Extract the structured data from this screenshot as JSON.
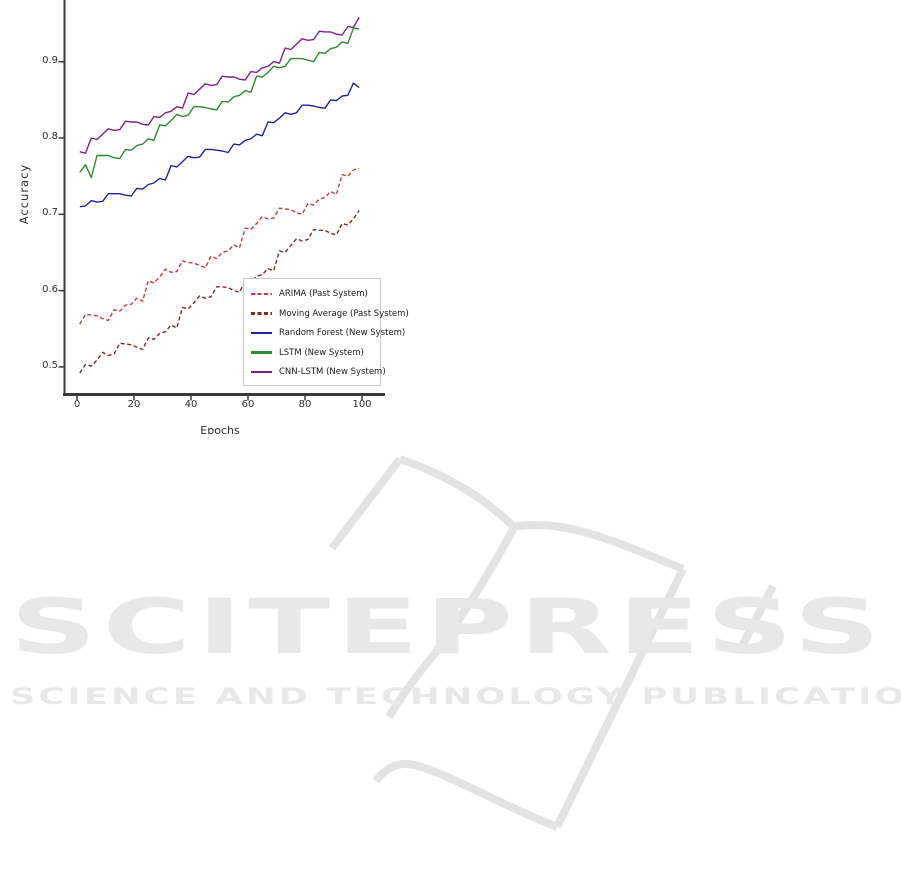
{
  "chart_data": {
    "type": "line",
    "title": "",
    "xlabel": "Epochs",
    "ylabel": "Accuracy",
    "xlim": [
      -4,
      104
    ],
    "ylim": [
      0.46,
      0.975
    ],
    "xticks": [
      0,
      20,
      40,
      60,
      80,
      100
    ],
    "yticks": [
      0.9,
      0.8,
      0.7,
      0.6,
      0.5
    ],
    "xtick_labels": [
      "0",
      "20",
      "40",
      "60",
      "80",
      "100"
    ],
    "ytick_labels": [
      "0.9",
      "0.8",
      "0.7",
      "0.6",
      "0.5"
    ],
    "grid": false,
    "legend_position": "lower right inside plot",
    "x": [
      1,
      3,
      5,
      7,
      9,
      11,
      13,
      15,
      17,
      19,
      21,
      23,
      25,
      27,
      29,
      31,
      33,
      35,
      37,
      39,
      41,
      43,
      45,
      47,
      49,
      51,
      53,
      55,
      57,
      59,
      61,
      63,
      65,
      67,
      69,
      71,
      73,
      75,
      77,
      79,
      81,
      83,
      85,
      87,
      89,
      91,
      93,
      95,
      97,
      99
    ],
    "series": [
      {
        "label": "ARIMA (Past System)",
        "color": "#c43c3c",
        "dashed": true,
        "values": [
          0.556,
          0.569,
          0.568,
          0.567,
          0.563,
          0.561,
          0.575,
          0.573,
          0.581,
          0.582,
          0.59,
          0.586,
          0.613,
          0.61,
          0.618,
          0.628,
          0.624,
          0.625,
          0.639,
          0.637,
          0.636,
          0.633,
          0.63,
          0.645,
          0.642,
          0.65,
          0.652,
          0.66,
          0.656,
          0.682,
          0.68,
          0.688,
          0.697,
          0.694,
          0.695,
          0.708,
          0.707,
          0.706,
          0.702,
          0.7,
          0.714,
          0.712,
          0.72,
          0.722,
          0.73,
          0.726,
          0.752,
          0.75,
          0.758,
          0.76
        ]
      },
      {
        "label": "Moving Average (Past System)",
        "color": "#7e2a22",
        "dashed": true,
        "values": [
          0.492,
          0.503,
          0.501,
          0.509,
          0.519,
          0.515,
          0.517,
          0.531,
          0.53,
          0.529,
          0.526,
          0.523,
          0.538,
          0.536,
          0.544,
          0.546,
          0.555,
          0.551,
          0.578,
          0.576,
          0.584,
          0.593,
          0.59,
          0.592,
          0.605,
          0.605,
          0.604,
          0.6,
          0.598,
          0.613,
          0.611,
          0.619,
          0.621,
          0.629,
          0.626,
          0.652,
          0.65,
          0.659,
          0.668,
          0.665,
          0.667,
          0.68,
          0.679,
          0.679,
          0.675,
          0.673,
          0.688,
          0.686,
          0.694,
          0.705
        ]
      },
      {
        "label": "Random Forest (New System)",
        "color": "#23239c",
        "dashed": false,
        "values": [
          0.71,
          0.711,
          0.718,
          0.716,
          0.717,
          0.727,
          0.727,
          0.727,
          0.725,
          0.724,
          0.734,
          0.733,
          0.739,
          0.741,
          0.747,
          0.745,
          0.764,
          0.762,
          0.769,
          0.776,
          0.774,
          0.775,
          0.785,
          0.785,
          0.784,
          0.783,
          0.781,
          0.792,
          0.791,
          0.797,
          0.799,
          0.805,
          0.803,
          0.821,
          0.82,
          0.826,
          0.833,
          0.831,
          0.833,
          0.843,
          0.843,
          0.842,
          0.84,
          0.839,
          0.85,
          0.849,
          0.855,
          0.856,
          0.872,
          0.866
        ]
      },
      {
        "label": "LSTM (New System)",
        "color": "#2f8b33",
        "dashed": false,
        "values": [
          0.755,
          0.765,
          0.748,
          0.777,
          0.777,
          0.777,
          0.774,
          0.773,
          0.785,
          0.784,
          0.79,
          0.792,
          0.799,
          0.797,
          0.817,
          0.816,
          0.823,
          0.831,
          0.828,
          0.83,
          0.841,
          0.841,
          0.84,
          0.838,
          0.837,
          0.848,
          0.847,
          0.854,
          0.856,
          0.862,
          0.86,
          0.881,
          0.88,
          0.886,
          0.894,
          0.892,
          0.894,
          0.904,
          0.904,
          0.904,
          0.902,
          0.9,
          0.912,
          0.911,
          0.917,
          0.919,
          0.926,
          0.924,
          0.944,
          0.943
        ]
      },
      {
        "label": "CNN-LSTM (New System)",
        "color": "#7d2483",
        "dashed": false,
        "values": [
          0.782,
          0.78,
          0.8,
          0.798,
          0.805,
          0.812,
          0.81,
          0.811,
          0.822,
          0.821,
          0.821,
          0.818,
          0.817,
          0.828,
          0.827,
          0.833,
          0.835,
          0.841,
          0.839,
          0.859,
          0.857,
          0.864,
          0.871,
          0.869,
          0.87,
          0.881,
          0.88,
          0.88,
          0.877,
          0.876,
          0.887,
          0.886,
          0.892,
          0.894,
          0.9,
          0.898,
          0.918,
          0.916,
          0.923,
          0.93,
          0.928,
          0.929,
          0.94,
          0.939,
          0.939,
          0.936,
          0.935,
          0.946,
          0.945,
          0.958
        ]
      }
    ],
    "axis_color": "#3a3a3a"
  },
  "watermark": {
    "logo_text": "SCITEPRESS",
    "tagline": "SCIENCE AND TECHNOLOGY PUBLICATIONS",
    "color": "#e8e8e8",
    "book_icon": "open-book-outline"
  }
}
